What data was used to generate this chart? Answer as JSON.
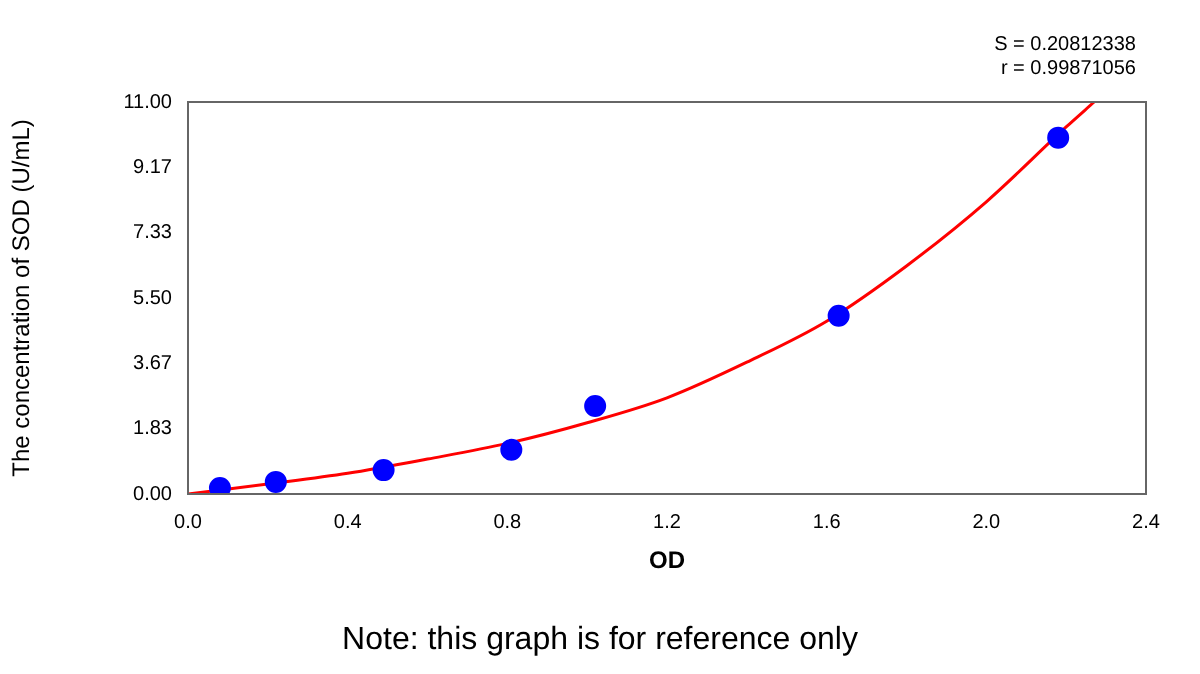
{
  "chart_data": {
    "type": "scatter",
    "xlabel": "OD",
    "ylabel": "The concentration of SOD (U/mL)",
    "xlim": [
      0,
      2.4
    ],
    "xticks": [
      {
        "value": 0,
        "label": "0.0"
      },
      0.4,
      0.8,
      1.2,
      1.6,
      {
        "value": 2,
        "label": "2.0"
      },
      2.4
    ],
    "ylim": [
      0,
      11
    ],
    "yticks": [
      {
        "value": 0,
        "label": "0.00"
      },
      1.83,
      3.67,
      {
        "value": 5.5,
        "label": "5.50"
      },
      7.33,
      9.17,
      {
        "value": 11,
        "label": "11.00"
      }
    ],
    "grid": false,
    "legend": false,
    "marker": "circle",
    "series": [
      {
        "type": "scatter",
        "color": "#0000ff",
        "x": [
          0.08,
          0.22,
          0.49,
          0.81,
          1.02,
          1.63,
          2.18
        ],
        "values": [
          0.17,
          0.34,
          0.67,
          1.24,
          2.47,
          5.0,
          10.0
        ]
      },
      {
        "type": "line",
        "color": "#ff0000",
        "marker": "none",
        "line_style": "solid",
        "x": [
          0,
          0.2,
          0.4,
          0.6,
          0.8,
          1.0,
          1.2,
          1.4,
          1.6,
          1.8,
          2.0,
          2.2,
          2.27
        ],
        "values": [
          0,
          0.28,
          0.58,
          0.98,
          1.42,
          2.0,
          2.7,
          3.7,
          4.85,
          6.4,
          8.2,
          10.3,
          11.0
        ]
      }
    ],
    "annotations": [
      "S = 0.20812338",
      "r = 0.99871056",
      "Note: this graph is for reference only"
    ]
  }
}
